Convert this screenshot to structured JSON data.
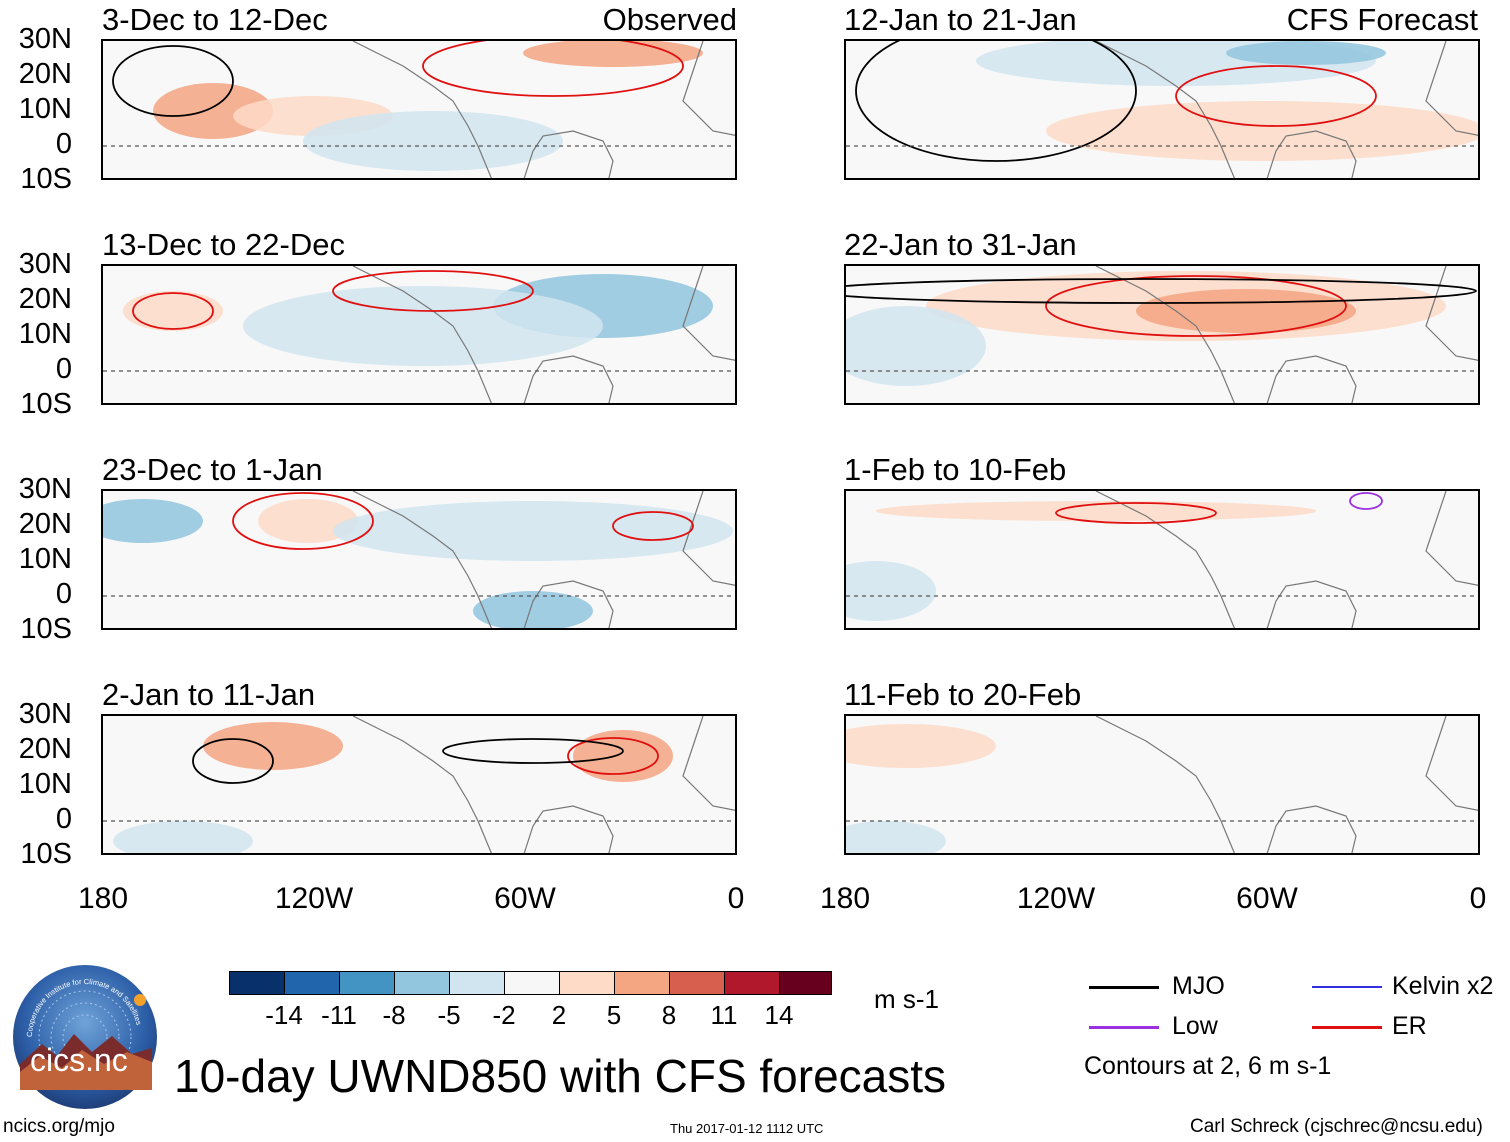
{
  "header": {
    "observed_label": "Observed",
    "forecast_label": "CFS Forecast"
  },
  "panels_left": [
    {
      "title": "3-Dec to 12-Dec"
    },
    {
      "title": "13-Dec to 22-Dec"
    },
    {
      "title": "23-Dec to 1-Jan"
    },
    {
      "title": "2-Jan to 11-Jan"
    }
  ],
  "panels_right": [
    {
      "title": "12-Jan to 21-Jan"
    },
    {
      "title": "22-Jan to 31-Jan"
    },
    {
      "title": "1-Feb to 10-Feb"
    },
    {
      "title": "11-Feb to 20-Feb"
    }
  ],
  "lat_labels": [
    "30N",
    "20N",
    "10N",
    "0",
    "10S"
  ],
  "lon_labels": [
    "180",
    "120W",
    "60W",
    "0"
  ],
  "colorbar": {
    "unit": "m s-1",
    "tick_labels": [
      "-14",
      "-11",
      "-8",
      "-5",
      "-2",
      "2",
      "5",
      "8",
      "11",
      "14"
    ],
    "colors": [
      "#08306b",
      "#2166ac",
      "#4393c3",
      "#92c5de",
      "#d1e5f0",
      "#f7f7f7",
      "#fddbc7",
      "#f4a582",
      "#d6604d",
      "#b2182b",
      "#67001f"
    ]
  },
  "legend": {
    "items": [
      {
        "label": "MJO",
        "color": "#000000"
      },
      {
        "label": "Kelvin x2",
        "color": "#3030e0"
      },
      {
        "label": "Low",
        "color": "#9b30e0"
      },
      {
        "label": "ER",
        "color": "#e01010"
      }
    ],
    "contours_note": "Contours at 2, 6 m s-1"
  },
  "title": "10-day UWND850 with CFS forecasts",
  "logo_text": "cics.nc",
  "logo_ring_text": "Cooperative Institute for Climate and Satellites",
  "footer": {
    "url": "ncics.org/mjo",
    "timestamp": "Thu 2017-01-12 1112 UTC",
    "credit": "Carl Schreck (cjschrec@ncsu.edu)"
  }
}
